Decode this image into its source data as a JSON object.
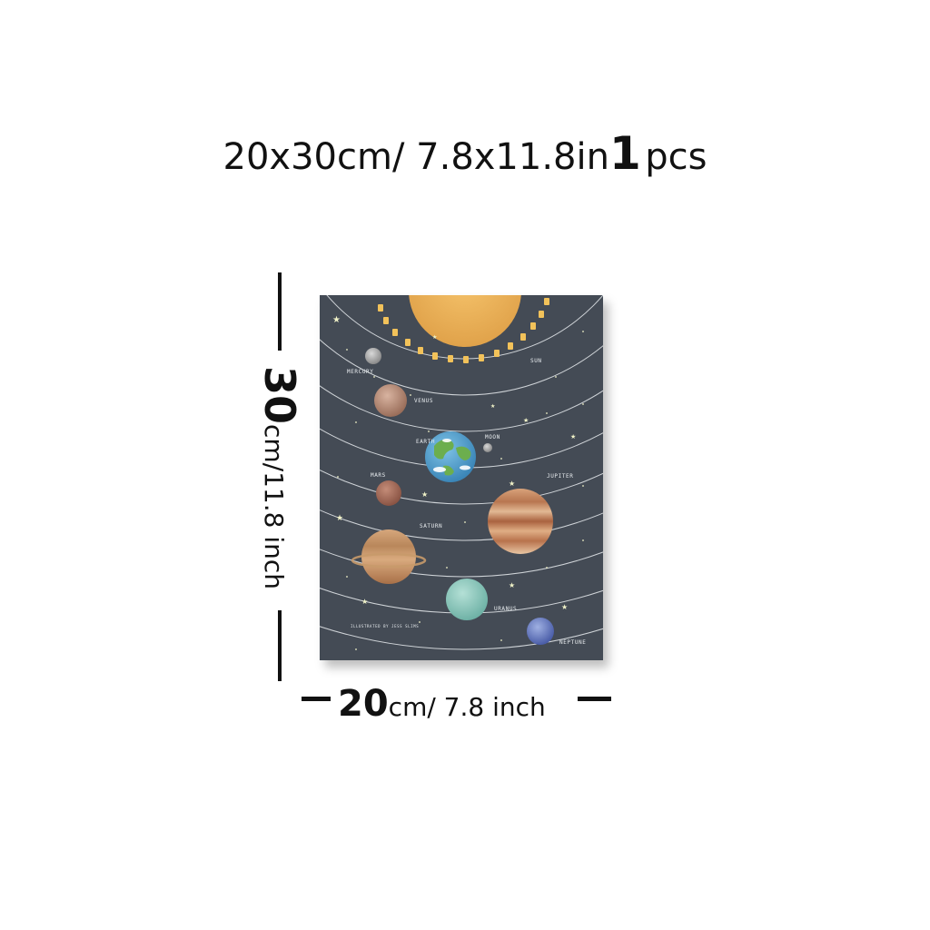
{
  "title": {
    "size_text": "20x30cm/ 7.8x11.8in",
    "quantity": "1",
    "unit": "pcs"
  },
  "height_label": {
    "value": "30",
    "rest": "cm/11.8 inch"
  },
  "width_label": {
    "value": "20",
    "rest": "cm/ 7.8 inch"
  },
  "poster": {
    "background": "#444b55",
    "labels": {
      "sun": "SUN",
      "mercury": "MERCURY",
      "venus": "VENUS",
      "earth": "EARTH",
      "moon": "MOON",
      "mars": "MARS",
      "jupiter": "JUPITER",
      "saturn": "SATURN",
      "uranus": "URANUS",
      "neptune": "NEPTUNE",
      "credit": "ILLUSTRATED BY JESS SLIMS"
    }
  }
}
